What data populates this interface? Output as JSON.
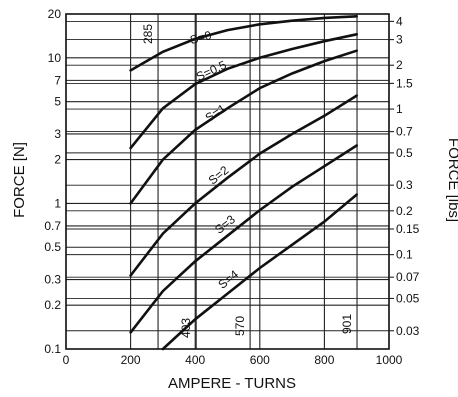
{
  "chart_data": {
    "type": "line",
    "xlabel": "AMPERE - TURNS",
    "ylabel": "FORCE [N]",
    "y2label": "FORCE [lbs]",
    "x_ticks": [
      "0",
      "200",
      "400",
      "600",
      "800",
      "1000"
    ],
    "xlim": [
      0,
      1000
    ],
    "ylim": [
      0.1,
      20
    ],
    "y_scale": "log",
    "grid": true,
    "y_ticks": [
      {
        "value": 20,
        "label": "20"
      },
      {
        "value": 10,
        "label": "10"
      },
      {
        "value": 7,
        "label": "7"
      },
      {
        "value": 5,
        "label": "5"
      },
      {
        "value": 3,
        "label": "3"
      },
      {
        "value": 2,
        "label": "2"
      },
      {
        "value": 1,
        "label": "1"
      },
      {
        "value": 0.7,
        "label": "0.7"
      },
      {
        "value": 0.5,
        "label": "0.5"
      },
      {
        "value": 0.3,
        "label": "0.3"
      },
      {
        "value": 0.2,
        "label": "0.2"
      },
      {
        "value": 0.1,
        "label": "0.1"
      }
    ],
    "y2_ticks": [
      {
        "value_lbs": 4,
        "label": "4"
      },
      {
        "value_lbs": 3,
        "label": "3"
      },
      {
        "value_lbs": 2,
        "label": "2"
      },
      {
        "value_lbs": 1.5,
        "label": "1.5"
      },
      {
        "value_lbs": 1,
        "label": "1"
      },
      {
        "value_lbs": 0.7,
        "label": "0.7"
      },
      {
        "value_lbs": 0.5,
        "label": "0.5"
      },
      {
        "value_lbs": 0.3,
        "label": "0.3"
      },
      {
        "value_lbs": 0.2,
        "label": "0.2"
      },
      {
        "value_lbs": 0.15,
        "label": "0.15"
      },
      {
        "value_lbs": 0.1,
        "label": "0.1"
      },
      {
        "value_lbs": 0.07,
        "label": "0.07"
      },
      {
        "value_lbs": 0.05,
        "label": "0.05"
      },
      {
        "value_lbs": 0.03,
        "label": "0.03"
      }
    ],
    "x_reference_lines": [
      {
        "value": 285,
        "label": "285"
      },
      {
        "value": 403,
        "label": "403"
      },
      {
        "value": 570,
        "label": "570"
      },
      {
        "value": 901,
        "label": "901"
      }
    ],
    "series": [
      {
        "name": "S=0",
        "x": [
          200,
          300,
          400,
          500,
          600,
          700,
          800,
          900
        ],
        "y": [
          8.2,
          11,
          13.5,
          15.5,
          17,
          18,
          18.8,
          19.3
        ]
      },
      {
        "name": "S=0.5",
        "x": [
          200,
          300,
          400,
          500,
          600,
          700,
          800,
          900
        ],
        "y": [
          2.4,
          4.5,
          6.6,
          8.4,
          10,
          11.5,
          13,
          14.5
        ]
      },
      {
        "name": "S=1",
        "x": [
          200,
          300,
          400,
          500,
          600,
          700,
          800,
          900
        ],
        "y": [
          1.0,
          2.0,
          3.2,
          4.5,
          6.2,
          7.8,
          9.5,
          11.2
        ]
      },
      {
        "name": "S=2",
        "x": [
          200,
          300,
          400,
          500,
          600,
          700,
          800,
          900
        ],
        "y": [
          0.32,
          0.62,
          1.0,
          1.5,
          2.2,
          3.0,
          4.0,
          5.5
        ]
      },
      {
        "name": "S=3",
        "x": [
          200,
          300,
          400,
          500,
          600,
          700,
          800,
          900
        ],
        "y": [
          0.13,
          0.25,
          0.4,
          0.6,
          0.9,
          1.3,
          1.8,
          2.5
        ]
      },
      {
        "name": "S=4",
        "x": [
          300,
          400,
          500,
          600,
          700,
          800,
          900
        ],
        "y": [
          0.1,
          0.16,
          0.24,
          0.36,
          0.52,
          0.75,
          1.15
        ]
      }
    ]
  }
}
